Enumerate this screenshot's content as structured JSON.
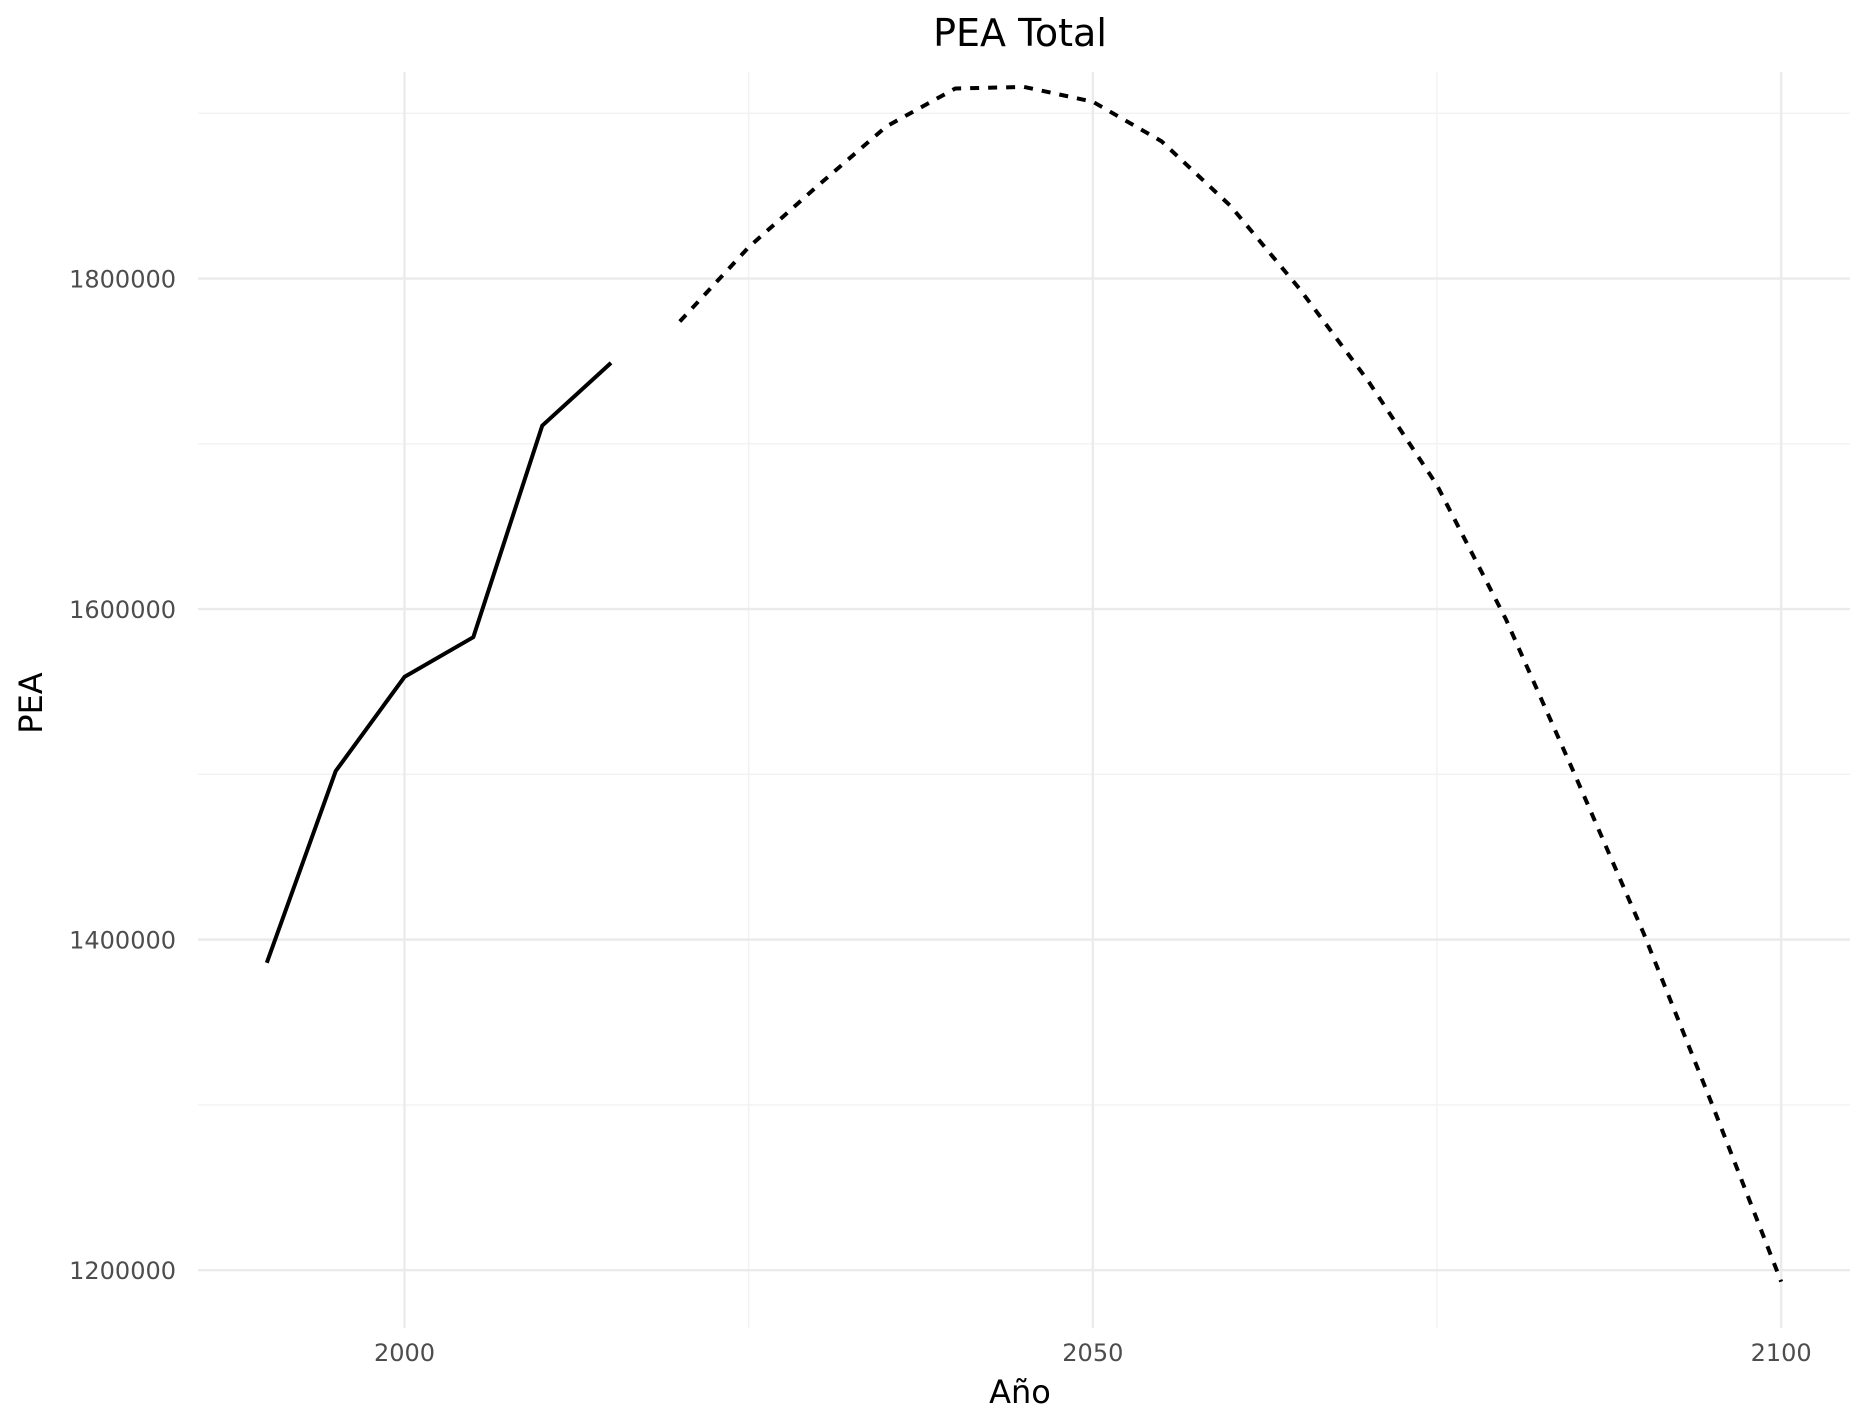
{
  "chart_data": {
    "type": "line",
    "title": "PEA Total",
    "xlabel": "Año",
    "ylabel": "PEA",
    "xlim": [
      1985,
      2105
    ],
    "ylim": [
      1165000,
      1925000
    ],
    "x_ticks": [
      2000,
      2050,
      2100
    ],
    "y_ticks": [
      1200000,
      1400000,
      1600000,
      1800000
    ],
    "grid": true,
    "legend": "none",
    "series": [
      {
        "line_style": "solid",
        "color": "#000000",
        "points": [
          {
            "x": 1990,
            "y": 1386000
          },
          {
            "x": 1995,
            "y": 1502000
          },
          {
            "x": 2000,
            "y": 1559000
          },
          {
            "x": 2005,
            "y": 1583000
          },
          {
            "x": 2010,
            "y": 1711000
          },
          {
            "x": 2015,
            "y": 1749000
          }
        ]
      },
      {
        "line_style": "dashed",
        "color": "#000000",
        "points": [
          {
            "x": 2020,
            "y": 1774000
          },
          {
            "x": 2025,
            "y": 1819000
          },
          {
            "x": 2030,
            "y": 1856000
          },
          {
            "x": 2035,
            "y": 1892000
          },
          {
            "x": 2040,
            "y": 1915000
          },
          {
            "x": 2045,
            "y": 1916000
          },
          {
            "x": 2050,
            "y": 1907000
          },
          {
            "x": 2055,
            "y": 1883000
          },
          {
            "x": 2060,
            "y": 1844000
          },
          {
            "x": 2065,
            "y": 1794000
          },
          {
            "x": 2070,
            "y": 1738000
          },
          {
            "x": 2075,
            "y": 1675000
          },
          {
            "x": 2080,
            "y": 1594000
          },
          {
            "x": 2085,
            "y": 1500000
          },
          {
            "x": 2090,
            "y": 1404000
          },
          {
            "x": 2095,
            "y": 1300000
          },
          {
            "x": 2100,
            "y": 1193000
          }
        ]
      }
    ]
  }
}
